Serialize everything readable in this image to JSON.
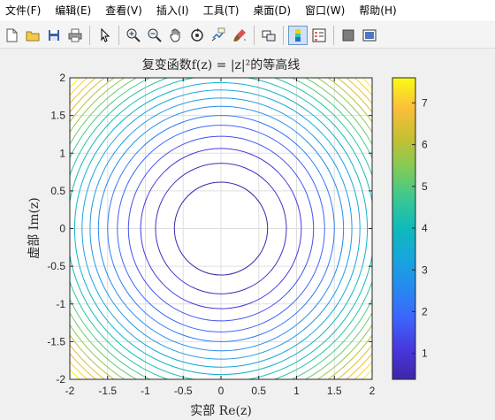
{
  "menu": [
    "文件(F)",
    "编辑(E)",
    "查看(V)",
    "插入(I)",
    "工具(T)",
    "桌面(D)",
    "窗口(W)",
    "帮助(H)"
  ],
  "toolbar": {
    "groups": [
      [
        "new-file-icon",
        "open-folder-icon",
        "save-icon",
        "print-icon"
      ],
      [
        "pointer-arrow-icon"
      ],
      [
        "zoom-in-icon",
        "zoom-out-icon",
        "pan-hand-icon",
        "rotate-3d-icon",
        "data-cursor-icon",
        "brush-icon"
      ],
      [
        "link-plot-icon"
      ],
      [
        "colorbar-icon",
        "legend-icon"
      ],
      [
        "hide-plot-tools-icon",
        "show-plot-tools-icon"
      ]
    ],
    "active": [
      "colorbar-icon"
    ]
  },
  "chart_data": {
    "type": "contour",
    "function": "|z|^2",
    "title": "复变函数f(z) = |z|²的等高线",
    "xlabel": "实部 Re(z)",
    "ylabel": "虚部 Im(z)",
    "xlim": [
      -2,
      2
    ],
    "ylim": [
      -2,
      2
    ],
    "xticks": [
      -2,
      -1.5,
      -1,
      -0.5,
      0,
      0.5,
      1,
      1.5,
      2
    ],
    "yticks": [
      -2,
      -1.5,
      -1,
      -0.5,
      0,
      0.5,
      1,
      1.5,
      2
    ],
    "levels": [
      0.38,
      0.75,
      1.13,
      1.5,
      1.88,
      2.25,
      2.63,
      3.0,
      3.38,
      3.75,
      4.13,
      4.5,
      4.88,
      5.25,
      5.63,
      6.0,
      6.38,
      6.75,
      7.13,
      7.5
    ],
    "clim": [
      0.38,
      7.6
    ],
    "colormap": "parula",
    "grid": true,
    "colorbar": {
      "ticks": [
        1,
        2,
        3,
        4,
        5,
        6,
        7
      ]
    }
  }
}
